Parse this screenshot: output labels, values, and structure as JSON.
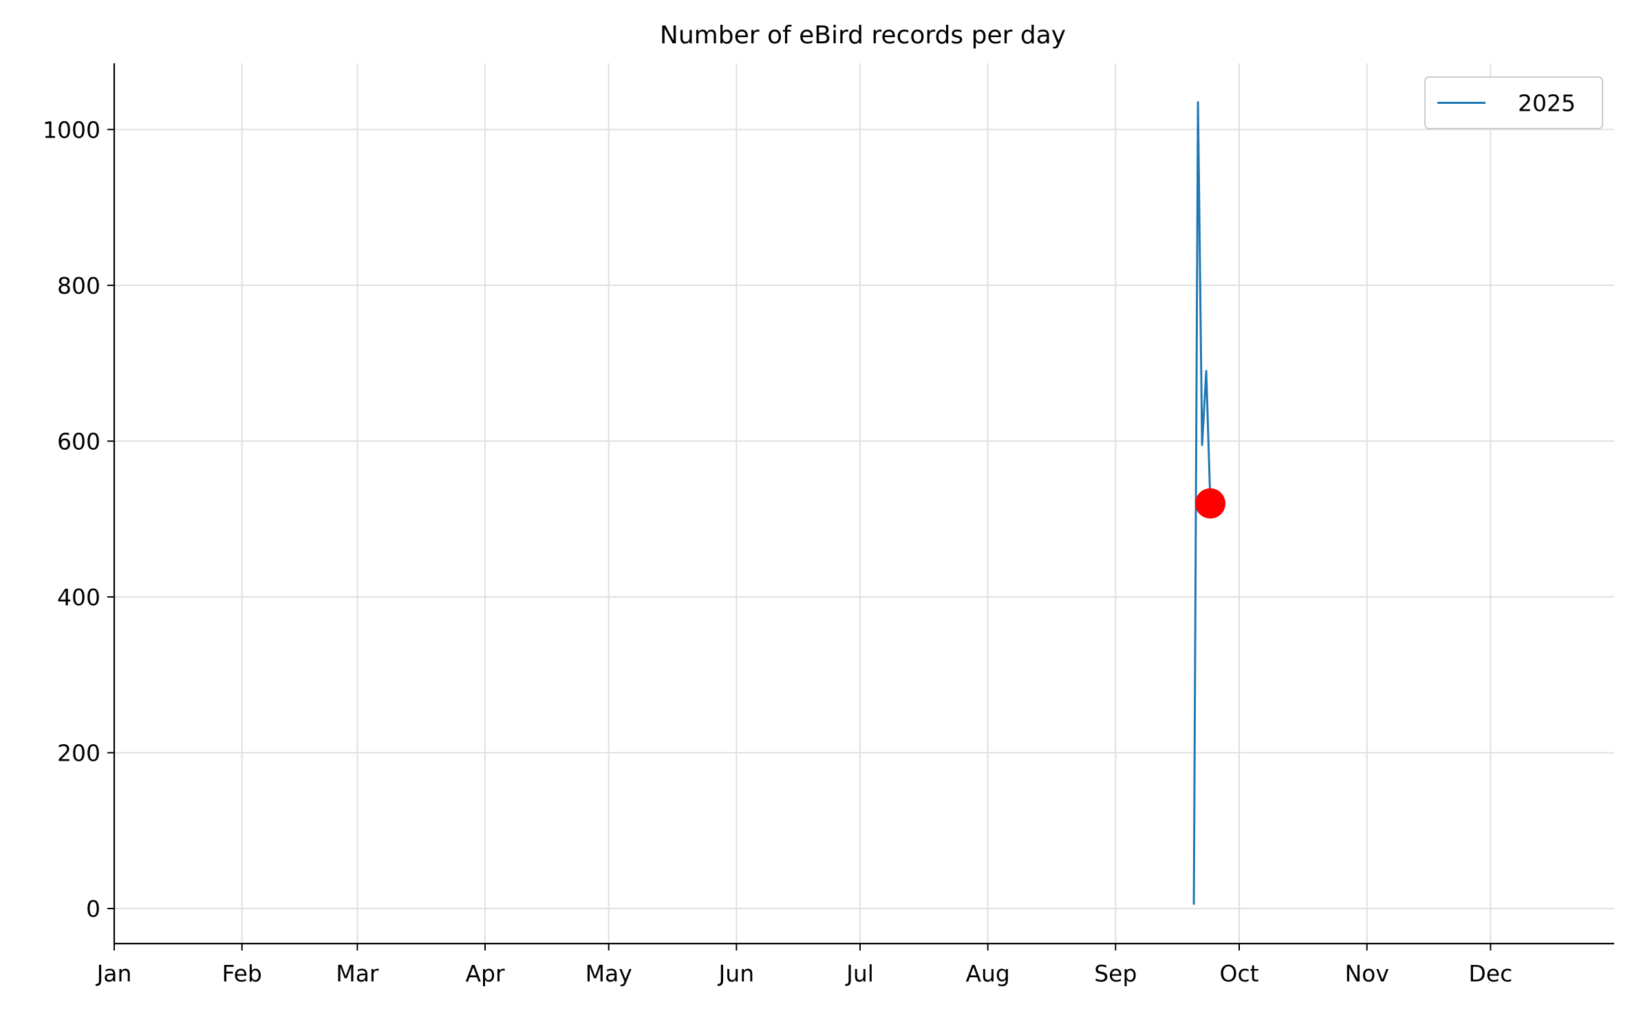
{
  "chart_data": {
    "type": "line",
    "title": "Number of eBird records per day",
    "xlabel": "",
    "ylabel": "",
    "x_tick_labels": [
      "Jan",
      "Feb",
      "Mar",
      "Apr",
      "May",
      "Jun",
      "Jul",
      "Aug",
      "Sep",
      "Oct",
      "Nov",
      "Dec"
    ],
    "x_tick_dates": [
      "2025-01-01",
      "2025-02-01",
      "2025-03-01",
      "2025-04-01",
      "2025-05-01",
      "2025-06-01",
      "2025-07-01",
      "2025-08-01",
      "2025-09-01",
      "2025-10-01",
      "2025-11-01",
      "2025-12-01"
    ],
    "xlim": [
      "2025-01-01",
      "2025-12-31"
    ],
    "y_ticks": [
      0,
      200,
      400,
      600,
      800,
      1000
    ],
    "ylim": [
      -45,
      1085
    ],
    "grid": true,
    "legend_position": "top-right",
    "series": [
      {
        "name": "2025",
        "color": "#1f77b4",
        "x": [
          "2025-09-20",
          "2025-09-21",
          "2025-09-22",
          "2025-09-23",
          "2025-09-24"
        ],
        "y": [
          5,
          1035,
          595,
          690,
          520
        ]
      }
    ],
    "highlight_point": {
      "x": "2025-09-24",
      "y": 520,
      "color": "#ff0000"
    }
  }
}
